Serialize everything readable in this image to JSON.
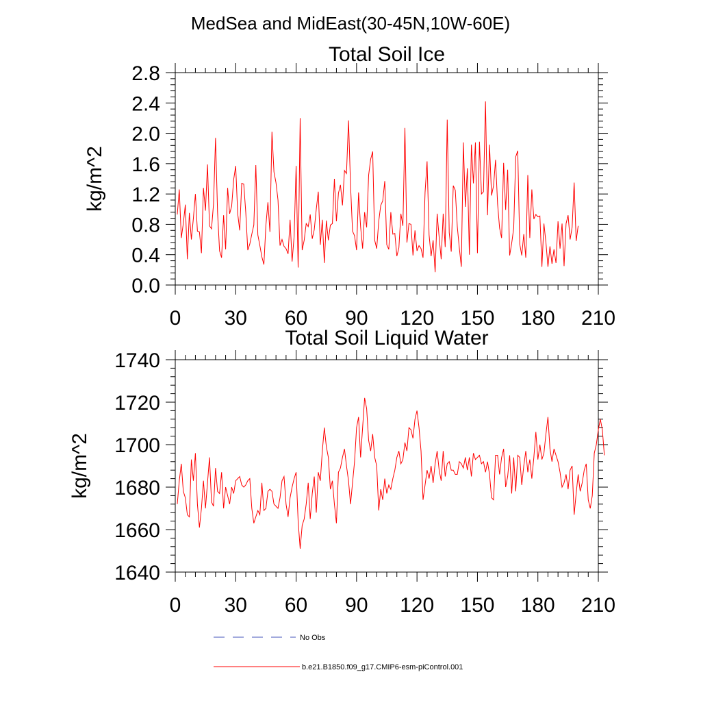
{
  "figure_title": "MedSea and MidEast(30-45N,10W-60E)",
  "colors": {
    "series": "#ff0000",
    "obs": "#4455bb",
    "axis": "#000000"
  },
  "legend": {
    "obs_label": "No Obs",
    "model_label": "b.e21.B1850.f09_g17.CMIP6-esm-piControl.001"
  },
  "chart_data": [
    {
      "type": "line",
      "title": "Total Soil Ice",
      "xlabel": "",
      "ylabel": "kg/m^2",
      "xlim": [
        0,
        210
      ],
      "ylim": [
        0.0,
        2.8
      ],
      "x_ticks": [
        0,
        30,
        60,
        90,
        120,
        150,
        180,
        210
      ],
      "y_ticks": [
        0.0,
        0.4,
        0.8,
        1.2,
        1.6,
        2.0,
        2.4,
        2.8
      ],
      "y_tick_labels": [
        "0.0",
        "0.4",
        "0.8",
        "1.2",
        "1.6",
        "2.0",
        "2.4",
        "2.8"
      ],
      "series": [
        {
          "name": "b.e21.B1850.f09_g17.CMIP6-esm-piControl.001",
          "x_start": 1,
          "values": [
            0.93,
            1.26,
            0.62,
            0.81,
            1.06,
            0.34,
            0.95,
            0.6,
            0.88,
            1.2,
            0.71,
            0.7,
            0.42,
            1.28,
            0.98,
            1.59,
            0.78,
            0.74,
            1.07,
            1.94,
            0.96,
            0.45,
            0.36,
            0.92,
            0.47,
            1.28,
            0.94,
            1.04,
            1.39,
            1.57,
            0.94,
            0.72,
            1.34,
            1.33,
            0.96,
            0.46,
            0.54,
            0.67,
            0.79,
            1.58,
            0.66,
            0.52,
            0.37,
            0.27,
            0.79,
            1.09,
            0.7,
            2.02,
            1.49,
            1.35,
            1.12,
            0.52,
            0.6,
            0.51,
            0.48,
            0.41,
            0.86,
            0.31,
            0.64,
            1.57,
            0.23,
            2.2,
            0.46,
            0.59,
            0.81,
            0.77,
            0.93,
            0.61,
            0.73,
            1.0,
            1.23,
            0.53,
            0.86,
            0.29,
            0.85,
            0.59,
            0.79,
            0.81,
            1.4,
            0.84,
            1.21,
            1.32,
            1.05,
            1.51,
            1.47,
            2.17,
            1.32,
            0.71,
            0.65,
            0.46,
            1.22,
            0.77,
            0.48,
            0.96,
            0.76,
            1.45,
            1.66,
            1.76,
            0.59,
            0.48,
            0.84,
            1.05,
            1.11,
            1.37,
            0.53,
            0.47,
            0.96,
            0.67,
            0.68,
            0.38,
            0.49,
            0.94,
            0.78,
            2.07,
            0.56,
            0.81,
            0.8,
            0.39,
            0.72,
            0.45,
            0.52,
            0.48,
            0.36,
            1.22,
            1.63,
            0.66,
            0.38,
            0.59,
            0.17,
            0.94,
            0.63,
            0.34,
            0.94,
            0.5,
            2.18,
            0.69,
            0.44,
            1.31,
            1.25,
            0.77,
            0.49,
            0.24,
            1.88,
            1.03,
            1.54,
            0.4,
            1.85,
            1.34,
            1.88,
            0.42,
            1.89,
            1.2,
            1.23,
            2.42,
            0.92,
            1.85,
            1.18,
            1.31,
            1.65,
            1.07,
            0.75,
            0.62,
            1.61,
            0.99,
            1.52,
            0.39,
            0.55,
            0.75,
            1.69,
            1.77,
            0.54,
            0.39,
            0.67,
            0.36,
            1.45,
            0.62,
            1.26,
            0.87,
            0.93,
            0.9,
            0.91,
            0.24,
            0.81,
            0.56,
            0.24,
            0.51,
            0.28,
            0.47,
            0.29,
            0.84,
            0.48,
            0.81,
            0.25,
            0.81,
            0.92,
            0.6,
            0.76,
            1.35,
            0.58,
            0.78
          ]
        }
      ]
    },
    {
      "type": "line",
      "title": "Total Soil Liquid Water",
      "xlabel": "",
      "ylabel": "kg/m^2",
      "xlim": [
        0,
        210
      ],
      "ylim": [
        1640,
        1740
      ],
      "x_ticks": [
        0,
        30,
        60,
        90,
        120,
        150,
        180,
        210
      ],
      "y_ticks": [
        1640,
        1660,
        1680,
        1700,
        1720,
        1740
      ],
      "y_tick_labels": [
        "1640",
        "1660",
        "1680",
        "1700",
        "1720",
        "1740"
      ],
      "series": [
        {
          "name": "b.e21.B1850.f09_g17.CMIP6-esm-piControl.001",
          "x_start": 1,
          "values": [
            1672,
            1683,
            1691,
            1678,
            1675,
            1667,
            1666,
            1693,
            1683,
            1696,
            1672,
            1661,
            1670,
            1683,
            1670,
            1682,
            1694,
            1673,
            1671,
            1689,
            1678,
            1677,
            1687,
            1670,
            1680,
            1676,
            1672,
            1680,
            1677,
            1683,
            1684,
            1685,
            1681,
            1680,
            1681,
            1683,
            1684,
            1670,
            1663,
            1666,
            1669,
            1667,
            1682,
            1669,
            1670,
            1678,
            1679,
            1678,
            1672,
            1671,
            1670,
            1675,
            1683,
            1685,
            1672,
            1666,
            1675,
            1680,
            1684,
            1687,
            1664,
            1651,
            1662,
            1665,
            1672,
            1682,
            1665,
            1677,
            1685,
            1668,
            1687,
            1683,
            1697,
            1708,
            1699,
            1694,
            1679,
            1683,
            1672,
            1663,
            1687,
            1689,
            1694,
            1698,
            1690,
            1683,
            1672,
            1682,
            1692,
            1708,
            1713,
            1694,
            1708,
            1722,
            1717,
            1702,
            1697,
            1705,
            1694,
            1690,
            1669,
            1679,
            1674,
            1684,
            1677,
            1681,
            1679,
            1684,
            1688,
            1694,
            1697,
            1691,
            1693,
            1701,
            1697,
            1708,
            1707,
            1703,
            1712,
            1716,
            1708,
            1697,
            1674,
            1681,
            1688,
            1684,
            1690,
            1682,
            1691,
            1697,
            1688,
            1683,
            1697,
            1685,
            1691,
            1692,
            1688,
            1688,
            1686,
            1686,
            1692,
            1691,
            1689,
            1694,
            1688,
            1694,
            1685,
            1696,
            1693,
            1694,
            1695,
            1691,
            1692,
            1687,
            1692,
            1686,
            1675,
            1674,
            1695,
            1695,
            1686,
            1694,
            1698,
            1680,
            1685,
            1695,
            1677,
            1694,
            1678,
            1695,
            1694,
            1681,
            1690,
            1697,
            1687,
            1693,
            1684,
            1694,
            1706,
            1693,
            1700,
            1693,
            1696,
            1705,
            1713,
            1698,
            1692,
            1698,
            1695,
            1692,
            1687,
            1680,
            1682,
            1686,
            1679,
            1688,
            1690,
            1667,
            1677,
            1686,
            1678,
            1682,
            1688,
            1691,
            1674,
            1670,
            1676,
            1696,
            1700,
            1707,
            1712,
            1707,
            1695
          ]
        }
      ]
    }
  ]
}
